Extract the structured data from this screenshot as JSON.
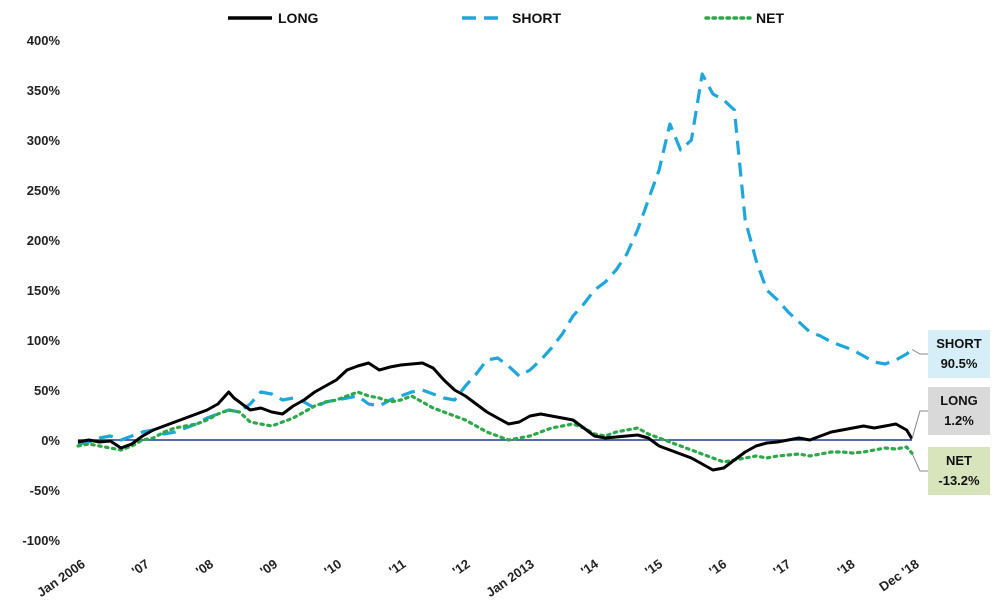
{
  "chart_data": {
    "type": "line",
    "title": "",
    "xlabel": "",
    "ylabel": "",
    "ylim": [
      -100,
      400
    ],
    "y_ticks": [
      "400%",
      "350%",
      "300%",
      "250%",
      "200%",
      "150%",
      "100%",
      "50%",
      "0%",
      "-50%",
      "-100%"
    ],
    "x_ticks": [
      "Jan 2006",
      "'07",
      "'08",
      "'09",
      "'10",
      "'11",
      "'12",
      "Jan 2013",
      "'14",
      "'15",
      "'16",
      "'17",
      "'18",
      "Dec '18"
    ],
    "legend_position": "top",
    "grid": false,
    "zero_line_color": "#1f3a8a",
    "series": [
      {
        "name": "LONG",
        "color": "#000000",
        "style": "solid",
        "end_label": [
          "LONG",
          "1.2%"
        ],
        "end_label_bg": "#d9d9d9",
        "points": [
          [
            "2006-01",
            -2
          ],
          [
            "2006-03",
            0
          ],
          [
            "2006-05",
            -2
          ],
          [
            "2006-07",
            -1
          ],
          [
            "2006-09",
            -8
          ],
          [
            "2006-11",
            -4
          ],
          [
            "2007-01",
            4
          ],
          [
            "2007-03",
            10
          ],
          [
            "2007-05",
            14
          ],
          [
            "2007-07",
            18
          ],
          [
            "2007-09",
            22
          ],
          [
            "2007-11",
            26
          ],
          [
            "2008-01",
            30
          ],
          [
            "2008-03",
            36
          ],
          [
            "2008-05",
            48
          ],
          [
            "2008-06",
            42
          ],
          [
            "2008-07",
            38
          ],
          [
            "2008-09",
            30
          ],
          [
            "2008-11",
            32
          ],
          [
            "2009-01",
            28
          ],
          [
            "2009-03",
            26
          ],
          [
            "2009-05",
            34
          ],
          [
            "2009-07",
            40
          ],
          [
            "2009-09",
            48
          ],
          [
            "2009-11",
            54
          ],
          [
            "2010-01",
            60
          ],
          [
            "2010-03",
            70
          ],
          [
            "2010-05",
            74
          ],
          [
            "2010-07",
            77
          ],
          [
            "2010-09",
            70
          ],
          [
            "2010-11",
            73
          ],
          [
            "2011-01",
            75
          ],
          [
            "2011-03",
            76
          ],
          [
            "2011-05",
            77
          ],
          [
            "2011-07",
            72
          ],
          [
            "2011-09",
            60
          ],
          [
            "2011-11",
            50
          ],
          [
            "2012-01",
            44
          ],
          [
            "2012-03",
            36
          ],
          [
            "2012-05",
            28
          ],
          [
            "2012-07",
            22
          ],
          [
            "2012-09",
            16
          ],
          [
            "2012-11",
            18
          ],
          [
            "2013-01",
            24
          ],
          [
            "2013-03",
            26
          ],
          [
            "2013-05",
            24
          ],
          [
            "2013-07",
            22
          ],
          [
            "2013-09",
            20
          ],
          [
            "2013-11",
            12
          ],
          [
            "2014-01",
            4
          ],
          [
            "2014-03",
            2
          ],
          [
            "2014-05",
            3
          ],
          [
            "2014-07",
            4
          ],
          [
            "2014-09",
            5
          ],
          [
            "2014-11",
            2
          ],
          [
            "2015-01",
            -6
          ],
          [
            "2015-03",
            -10
          ],
          [
            "2015-05",
            -14
          ],
          [
            "2015-07",
            -18
          ],
          [
            "2015-09",
            -24
          ],
          [
            "2015-11",
            -30
          ],
          [
            "2016-01",
            -28
          ],
          [
            "2016-03",
            -20
          ],
          [
            "2016-05",
            -12
          ],
          [
            "2016-07",
            -6
          ],
          [
            "2016-09",
            -3
          ],
          [
            "2016-11",
            -2
          ],
          [
            "2017-01",
            0
          ],
          [
            "2017-03",
            2
          ],
          [
            "2017-05",
            0
          ],
          [
            "2017-07",
            4
          ],
          [
            "2017-09",
            8
          ],
          [
            "2017-11",
            10
          ],
          [
            "2018-01",
            12
          ],
          [
            "2018-03",
            14
          ],
          [
            "2018-05",
            12
          ],
          [
            "2018-07",
            14
          ],
          [
            "2018-09",
            16
          ],
          [
            "2018-11",
            10
          ],
          [
            "2018-12",
            1.2
          ]
        ]
      },
      {
        "name": "SHORT",
        "color": "#1fa7dc",
        "style": "dashed",
        "end_label": [
          "SHORT",
          "90.5%"
        ],
        "end_label_bg": "#d6eef8",
        "points": [
          [
            "2006-01",
            -4
          ],
          [
            "2006-03",
            -2
          ],
          [
            "2006-05",
            2
          ],
          [
            "2006-07",
            4
          ],
          [
            "2006-09",
            0
          ],
          [
            "2006-11",
            4
          ],
          [
            "2007-01",
            8
          ],
          [
            "2007-03",
            10
          ],
          [
            "2007-05",
            6
          ],
          [
            "2007-07",
            8
          ],
          [
            "2007-09",
            12
          ],
          [
            "2007-11",
            16
          ],
          [
            "2008-01",
            22
          ],
          [
            "2008-03",
            26
          ],
          [
            "2008-05",
            30
          ],
          [
            "2008-07",
            28
          ],
          [
            "2008-09",
            36
          ],
          [
            "2008-11",
            48
          ],
          [
            "2009-01",
            46
          ],
          [
            "2009-03",
            40
          ],
          [
            "2009-05",
            42
          ],
          [
            "2009-07",
            38
          ],
          [
            "2009-09",
            32
          ],
          [
            "2009-11",
            38
          ],
          [
            "2010-01",
            40
          ],
          [
            "2010-03",
            42
          ],
          [
            "2010-05",
            44
          ],
          [
            "2010-07",
            36
          ],
          [
            "2010-09",
            34
          ],
          [
            "2010-11",
            40
          ],
          [
            "2011-01",
            44
          ],
          [
            "2011-03",
            48
          ],
          [
            "2011-05",
            50
          ],
          [
            "2011-07",
            46
          ],
          [
            "2011-09",
            42
          ],
          [
            "2011-11",
            40
          ],
          [
            "2012-01",
            54
          ],
          [
            "2012-03",
            66
          ],
          [
            "2012-05",
            80
          ],
          [
            "2012-07",
            82
          ],
          [
            "2012-09",
            74
          ],
          [
            "2012-11",
            64
          ],
          [
            "2013-01",
            70
          ],
          [
            "2013-03",
            80
          ],
          [
            "2013-05",
            92
          ],
          [
            "2013-07",
            106
          ],
          [
            "2013-09",
            124
          ],
          [
            "2013-11",
            136
          ],
          [
            "2014-01",
            150
          ],
          [
            "2014-03",
            158
          ],
          [
            "2014-05",
            170
          ],
          [
            "2014-07",
            186
          ],
          [
            "2014-09",
            210
          ],
          [
            "2014-11",
            240
          ],
          [
            "2015-01",
            270
          ],
          [
            "2015-03",
            316
          ],
          [
            "2015-05",
            290
          ],
          [
            "2015-07",
            300
          ],
          [
            "2015-09",
            366
          ],
          [
            "2015-11",
            346
          ],
          [
            "2016-01",
            340
          ],
          [
            "2016-03",
            330
          ],
          [
            "2016-05",
            220
          ],
          [
            "2016-07",
            180
          ],
          [
            "2016-09",
            150
          ],
          [
            "2016-11",
            140
          ],
          [
            "2017-01",
            128
          ],
          [
            "2017-03",
            118
          ],
          [
            "2017-05",
            108
          ],
          [
            "2017-07",
            104
          ],
          [
            "2017-09",
            98
          ],
          [
            "2017-11",
            94
          ],
          [
            "2018-01",
            90
          ],
          [
            "2018-03",
            84
          ],
          [
            "2018-05",
            78
          ],
          [
            "2018-07",
            76
          ],
          [
            "2018-09",
            80
          ],
          [
            "2018-11",
            86
          ],
          [
            "2018-12",
            90.5
          ]
        ]
      },
      {
        "name": "NET",
        "color": "#2ea84a",
        "style": "dotted",
        "end_label": [
          "NET",
          "-13.2%"
        ],
        "end_label_bg": "#d8e4bc",
        "points": [
          [
            "2006-01",
            -6
          ],
          [
            "2006-03",
            -4
          ],
          [
            "2006-05",
            -6
          ],
          [
            "2006-07",
            -8
          ],
          [
            "2006-09",
            -10
          ],
          [
            "2006-11",
            -6
          ],
          [
            "2007-01",
            0
          ],
          [
            "2007-03",
            2
          ],
          [
            "2007-05",
            8
          ],
          [
            "2007-07",
            12
          ],
          [
            "2007-09",
            14
          ],
          [
            "2007-11",
            16
          ],
          [
            "2008-01",
            20
          ],
          [
            "2008-03",
            26
          ],
          [
            "2008-05",
            30
          ],
          [
            "2008-07",
            28
          ],
          [
            "2008-09",
            18
          ],
          [
            "2008-11",
            16
          ],
          [
            "2009-01",
            14
          ],
          [
            "2009-03",
            18
          ],
          [
            "2009-05",
            22
          ],
          [
            "2009-07",
            28
          ],
          [
            "2009-09",
            34
          ],
          [
            "2009-11",
            38
          ],
          [
            "2010-01",
            40
          ],
          [
            "2010-03",
            44
          ],
          [
            "2010-05",
            48
          ],
          [
            "2010-07",
            44
          ],
          [
            "2010-09",
            42
          ],
          [
            "2010-11",
            38
          ],
          [
            "2011-01",
            40
          ],
          [
            "2011-03",
            44
          ],
          [
            "2011-05",
            38
          ],
          [
            "2011-07",
            32
          ],
          [
            "2011-09",
            28
          ],
          [
            "2011-11",
            24
          ],
          [
            "2012-01",
            20
          ],
          [
            "2012-03",
            14
          ],
          [
            "2012-05",
            8
          ],
          [
            "2012-07",
            4
          ],
          [
            "2012-09",
            0
          ],
          [
            "2012-11",
            2
          ],
          [
            "2013-01",
            4
          ],
          [
            "2013-03",
            8
          ],
          [
            "2013-05",
            12
          ],
          [
            "2013-07",
            14
          ],
          [
            "2013-09",
            16
          ],
          [
            "2013-11",
            12
          ],
          [
            "2014-01",
            6
          ],
          [
            "2014-03",
            4
          ],
          [
            "2014-05",
            8
          ],
          [
            "2014-07",
            10
          ],
          [
            "2014-09",
            12
          ],
          [
            "2014-11",
            6
          ],
          [
            "2015-01",
            2
          ],
          [
            "2015-03",
            -2
          ],
          [
            "2015-05",
            -6
          ],
          [
            "2015-07",
            -10
          ],
          [
            "2015-09",
            -14
          ],
          [
            "2015-11",
            -18
          ],
          [
            "2016-01",
            -22
          ],
          [
            "2016-03",
            -20
          ],
          [
            "2016-05",
            -18
          ],
          [
            "2016-07",
            -16
          ],
          [
            "2016-09",
            -18
          ],
          [
            "2016-11",
            -16
          ],
          [
            "2017-01",
            -15
          ],
          [
            "2017-03",
            -14
          ],
          [
            "2017-05",
            -16
          ],
          [
            "2017-07",
            -14
          ],
          [
            "2017-09",
            -12
          ],
          [
            "2017-11",
            -12
          ],
          [
            "2018-01",
            -13
          ],
          [
            "2018-03",
            -12
          ],
          [
            "2018-05",
            -10
          ],
          [
            "2018-07",
            -8
          ],
          [
            "2018-09",
            -9
          ],
          [
            "2018-11",
            -7
          ],
          [
            "2018-12",
            -13.2
          ]
        ]
      }
    ]
  }
}
